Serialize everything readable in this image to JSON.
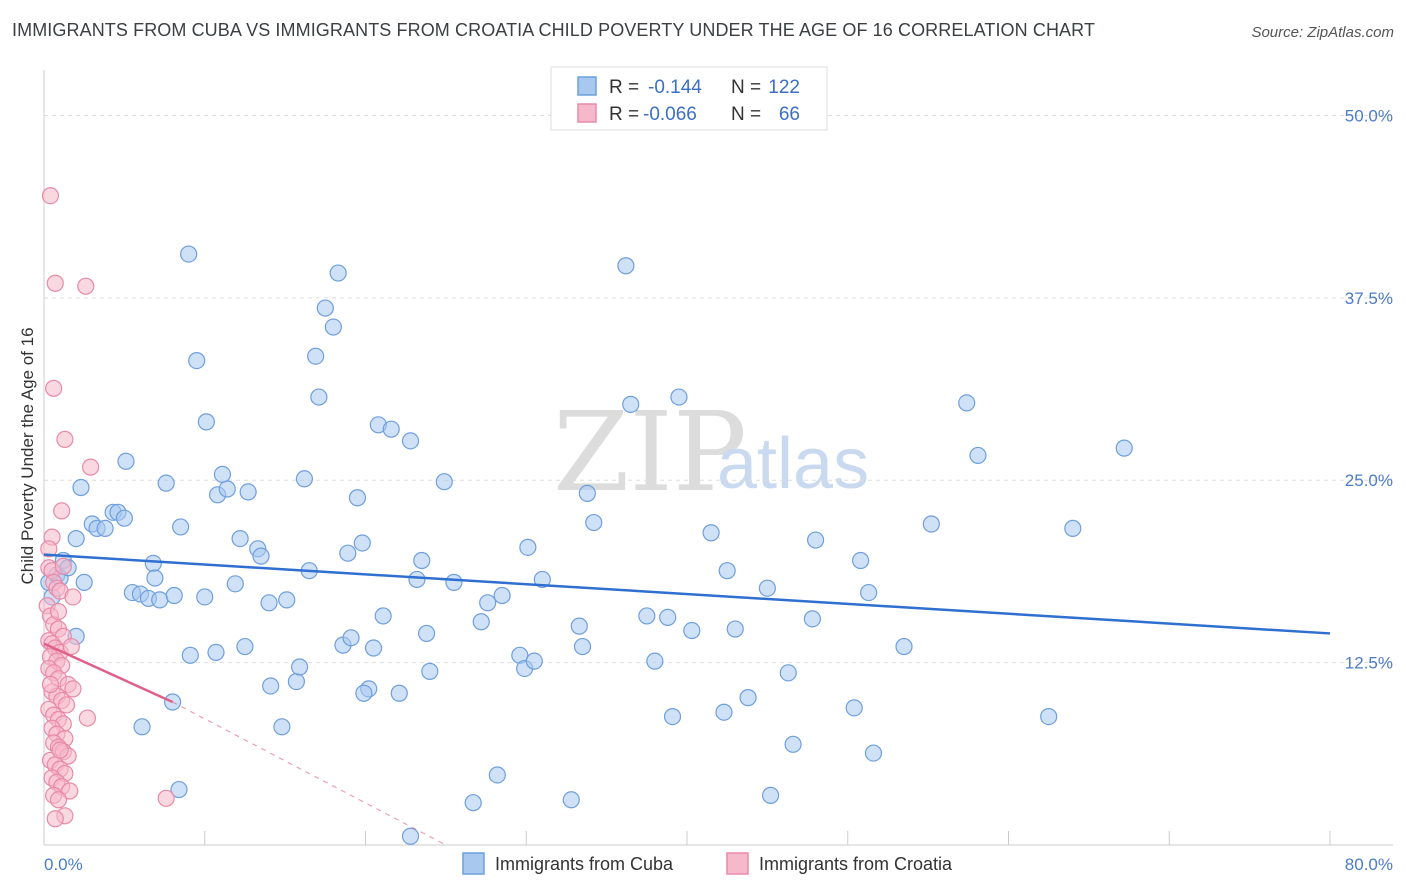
{
  "title": "IMMIGRANTS FROM CUBA VS IMMIGRANTS FROM CROATIA CHILD POVERTY UNDER THE AGE OF 16 CORRELATION CHART",
  "source": "Source: ZipAtlas.com",
  "watermark": {
    "zip": "ZIP",
    "atlas": "atlas"
  },
  "legend_top": {
    "rows": [
      {
        "r_label": "R =",
        "r_value": "-0.144",
        "n_label": "N =",
        "n_value": "122"
      },
      {
        "r_label": "R =",
        "r_value": "-0.066",
        "n_label": "N =",
        "n_value": "66"
      }
    ]
  },
  "legend_bottom": {
    "items": [
      {
        "label": "Immigrants from Cuba"
      },
      {
        "label": "Immigrants from Croatia"
      }
    ]
  },
  "colors": {
    "cuba_fill": "#a8c8f0",
    "cuba_stroke": "#6f9fdc",
    "cuba_line": "#2f6fd0",
    "croatia_fill": "#f6b8cb",
    "croatia_stroke": "#e88aa8",
    "croatia_line": "#e0608a",
    "grid": "#dddddd",
    "tick_text": "#4a7cc9"
  },
  "chart_data": {
    "type": "scatter",
    "title": "IMMIGRANTS FROM CUBA VS IMMIGRANTS FROM CROATIA CHILD POVERTY UNDER THE AGE OF 16 CORRELATION CHART",
    "xlabel": "",
    "ylabel": "Child Poverty Under the Age of 16",
    "xlim": [
      0,
      80
    ],
    "ylim": [
      0,
      52.5
    ],
    "x_tick_labels": [
      "0.0%",
      "80.0%"
    ],
    "y_ticks": [
      12.5,
      25.0,
      37.5,
      50.0
    ],
    "y_tick_labels": [
      "12.5%",
      "25.0%",
      "37.5%",
      "50.0%"
    ],
    "grid": true,
    "legend_position": "top-center",
    "series": [
      {
        "name": "Immigrants from Cuba",
        "r": -0.144,
        "n": 122,
        "trend": {
          "x": [
            0,
            80
          ],
          "y": [
            19.9,
            14.5
          ]
        },
        "points": [
          [
            0.3,
            18.0
          ],
          [
            0.5,
            17.0
          ],
          [
            0.8,
            18.5
          ],
          [
            1.2,
            19.5
          ],
          [
            1.0,
            18.3
          ],
          [
            1.5,
            19.0
          ],
          [
            2.0,
            21.0
          ],
          [
            2.3,
            24.5
          ],
          [
            2.5,
            18.0
          ],
          [
            3.0,
            22.0
          ],
          [
            3.3,
            21.7
          ],
          [
            3.8,
            21.7
          ],
          [
            4.3,
            22.8
          ],
          [
            4.6,
            22.8
          ],
          [
            5.0,
            22.4
          ],
          [
            5.1,
            26.3
          ],
          [
            5.5,
            17.3
          ],
          [
            6.0,
            17.2
          ],
          [
            6.5,
            16.9
          ],
          [
            6.8,
            19.3
          ],
          [
            6.9,
            18.3
          ],
          [
            7.2,
            16.8
          ],
          [
            7.6,
            24.8
          ],
          [
            8.1,
            17.1
          ],
          [
            8.5,
            21.8
          ],
          [
            9.1,
            13.0
          ],
          [
            9.0,
            40.5
          ],
          [
            9.5,
            33.2
          ],
          [
            10.0,
            17.0
          ],
          [
            10.1,
            29.0
          ],
          [
            10.7,
            13.2
          ],
          [
            10.8,
            24.0
          ],
          [
            11.1,
            25.4
          ],
          [
            11.4,
            24.4
          ],
          [
            11.9,
            17.9
          ],
          [
            12.2,
            21.0
          ],
          [
            12.5,
            13.6
          ],
          [
            12.7,
            24.2
          ],
          [
            13.3,
            20.3
          ],
          [
            13.5,
            19.8
          ],
          [
            14.0,
            16.6
          ],
          [
            14.1,
            10.9
          ],
          [
            14.8,
            8.1
          ],
          [
            15.1,
            16.8
          ],
          [
            15.7,
            11.2
          ],
          [
            15.9,
            12.2
          ],
          [
            16.2,
            25.1
          ],
          [
            16.5,
            18.8
          ],
          [
            16.9,
            33.5
          ],
          [
            17.1,
            30.7
          ],
          [
            17.5,
            36.8
          ],
          [
            18.0,
            35.5
          ],
          [
            18.3,
            39.2
          ],
          [
            18.6,
            13.7
          ],
          [
            18.9,
            20.0
          ],
          [
            19.1,
            14.2
          ],
          [
            19.5,
            23.8
          ],
          [
            19.8,
            20.7
          ],
          [
            20.2,
            10.7
          ],
          [
            20.5,
            13.5
          ],
          [
            20.8,
            28.8
          ],
          [
            21.1,
            15.7
          ],
          [
            21.6,
            28.5
          ],
          [
            22.1,
            10.4
          ],
          [
            22.8,
            27.7
          ],
          [
            23.2,
            18.2
          ],
          [
            23.5,
            19.5
          ],
          [
            23.8,
            14.5
          ],
          [
            24.0,
            11.9
          ],
          [
            24.9,
            24.9
          ],
          [
            25.5,
            18.0
          ],
          [
            26.7,
            2.9
          ],
          [
            27.2,
            15.3
          ],
          [
            27.6,
            16.6
          ],
          [
            28.2,
            4.8
          ],
          [
            28.5,
            17.1
          ],
          [
            29.6,
            13.0
          ],
          [
            29.9,
            12.1
          ],
          [
            30.1,
            20.4
          ],
          [
            30.5,
            12.6
          ],
          [
            31.0,
            18.2
          ],
          [
            32.8,
            3.1
          ],
          [
            33.3,
            15.0
          ],
          [
            33.5,
            13.6
          ],
          [
            33.8,
            24.1
          ],
          [
            34.2,
            22.1
          ],
          [
            36.2,
            39.7
          ],
          [
            36.5,
            30.2
          ],
          [
            37.5,
            15.7
          ],
          [
            38.0,
            12.6
          ],
          [
            38.8,
            15.6
          ],
          [
            39.1,
            8.8
          ],
          [
            39.5,
            30.7
          ],
          [
            40.3,
            14.7
          ],
          [
            41.5,
            21.4
          ],
          [
            42.3,
            9.1
          ],
          [
            42.5,
            18.8
          ],
          [
            43.0,
            14.8
          ],
          [
            43.8,
            10.1
          ],
          [
            45.0,
            17.6
          ],
          [
            45.2,
            3.4
          ],
          [
            46.3,
            11.8
          ],
          [
            46.6,
            6.9
          ],
          [
            47.8,
            15.5
          ],
          [
            48.0,
            20.9
          ],
          [
            50.4,
            9.4
          ],
          [
            50.8,
            19.5
          ],
          [
            51.3,
            17.3
          ],
          [
            51.6,
            6.3
          ],
          [
            53.5,
            13.6
          ],
          [
            55.2,
            22.0
          ],
          [
            57.4,
            30.3
          ],
          [
            58.1,
            26.7
          ],
          [
            64.0,
            21.7
          ],
          [
            67.2,
            27.2
          ],
          [
            62.5,
            8.8
          ],
          [
            6.1,
            8.1
          ],
          [
            8.4,
            3.8
          ],
          [
            22.8,
            0.6
          ],
          [
            19.9,
            10.4
          ],
          [
            8.0,
            9.8
          ],
          [
            2.0,
            14.3
          ]
        ]
      },
      {
        "name": "Immigrants from Croatia",
        "r": -0.066,
        "n": 66,
        "trend": {
          "x": [
            0,
            8.0
          ],
          "y": [
            13.8,
            9.8
          ]
        },
        "trend_extended": {
          "x": [
            8.0,
            25.0
          ],
          "y": [
            9.8,
            0.0
          ]
        },
        "points": [
          [
            0.4,
            44.5
          ],
          [
            0.7,
            38.5
          ],
          [
            2.6,
            38.3
          ],
          [
            0.6,
            31.3
          ],
          [
            1.3,
            27.8
          ],
          [
            2.9,
            25.9
          ],
          [
            1.1,
            22.9
          ],
          [
            0.5,
            21.1
          ],
          [
            0.3,
            19.0
          ],
          [
            0.5,
            18.8
          ],
          [
            0.6,
            18.0
          ],
          [
            0.8,
            17.6
          ],
          [
            1.0,
            17.4
          ],
          [
            1.8,
            17.0
          ],
          [
            0.2,
            16.4
          ],
          [
            0.4,
            15.7
          ],
          [
            0.6,
            15.1
          ],
          [
            0.9,
            14.8
          ],
          [
            1.2,
            14.3
          ],
          [
            0.3,
            14.0
          ],
          [
            0.5,
            13.8
          ],
          [
            0.7,
            13.5
          ],
          [
            1.0,
            13.2
          ],
          [
            0.4,
            12.9
          ],
          [
            0.8,
            12.6
          ],
          [
            1.1,
            12.3
          ],
          [
            0.3,
            12.1
          ],
          [
            0.6,
            11.8
          ],
          [
            0.9,
            11.4
          ],
          [
            1.5,
            11.0
          ],
          [
            1.8,
            10.7
          ],
          [
            0.5,
            10.5
          ],
          [
            0.8,
            10.2
          ],
          [
            1.1,
            9.9
          ],
          [
            1.4,
            9.6
          ],
          [
            0.3,
            9.3
          ],
          [
            0.6,
            8.9
          ],
          [
            0.9,
            8.6
          ],
          [
            1.2,
            8.3
          ],
          [
            2.7,
            8.7
          ],
          [
            0.5,
            8.0
          ],
          [
            0.8,
            7.6
          ],
          [
            1.3,
            7.3
          ],
          [
            0.6,
            7.0
          ],
          [
            0.9,
            6.7
          ],
          [
            1.2,
            6.4
          ],
          [
            1.5,
            6.1
          ],
          [
            0.4,
            5.8
          ],
          [
            0.7,
            5.5
          ],
          [
            1.0,
            5.2
          ],
          [
            1.3,
            4.9
          ],
          [
            0.5,
            4.6
          ],
          [
            0.8,
            4.3
          ],
          [
            1.1,
            4.0
          ],
          [
            1.6,
            3.7
          ],
          [
            0.6,
            3.4
          ],
          [
            0.9,
            3.1
          ],
          [
            7.6,
            3.2
          ],
          [
            1.3,
            2.0
          ],
          [
            0.7,
            1.8
          ],
          [
            0.3,
            20.3
          ],
          [
            1.2,
            19.1
          ],
          [
            0.9,
            16.0
          ],
          [
            1.7,
            13.6
          ],
          [
            0.4,
            11.0
          ],
          [
            1.0,
            6.5
          ]
        ]
      }
    ]
  }
}
